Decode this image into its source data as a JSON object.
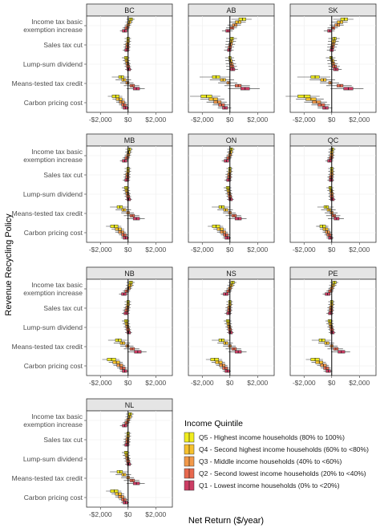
{
  "figure": {
    "ylabel": "Revenue Recycling Policy",
    "xlabel": "Net Return ($/year)",
    "legend_title": "Income Quintile"
  },
  "colors": {
    "Q5": "#f0ec1e",
    "Q4": "#f6c12e",
    "Q3": "#f2994a",
    "Q2": "#e8694f",
    "Q1": "#cc3d64",
    "strip": "#e5e5e5",
    "panel_border": "#333333",
    "grid": "#ebebeb",
    "whisker": "#333333"
  },
  "chart_data": {
    "type": "boxplot",
    "orientation": "horizontal",
    "facets": [
      "BC",
      "AB",
      "SK",
      "MB",
      "ON",
      "QC",
      "NB",
      "NS",
      "PE",
      "NL"
    ],
    "categories": [
      "Income tax basic exemption increase",
      "Sales tax cut",
      "Lump-sum dividend",
      "Means-tested tax credit",
      "Carbon pricing cost"
    ],
    "category_lines": [
      [
        "Income tax basic",
        "exemption increase"
      ],
      [
        "Sales tax cut"
      ],
      [
        "Lump-sum dividend"
      ],
      [
        "Means-tested tax credit"
      ],
      [
        "Carbon pricing cost"
      ]
    ],
    "xticks": [
      -2000,
      0,
      2000
    ],
    "xtick_labels": [
      "-$2,000",
      "$0",
      "$2,000"
    ],
    "xlim": [
      -3000,
      3200
    ],
    "grid": true,
    "legend_position": "bottom-right",
    "series": [
      {
        "key": "Q5",
        "name": "Q5 - Highest income households (80% to 100%)"
      },
      {
        "key": "Q4",
        "name": "Q4 - Second highest income households (60% to <80%)"
      },
      {
        "key": "Q3",
        "name": "Q3 - Middle income households (40% to <60%)"
      },
      {
        "key": "Q2",
        "name": "Q2 - Second lowest income households (20% to <40%)"
      },
      {
        "key": "Q1",
        "name": "Q1 - Lowest income households (0% to <20%)"
      }
    ],
    "note": "Median values per facet, category and quintile (order Q5,Q4,Q3,Q2,Q1)",
    "medians": {
      "BC": [
        [
          200,
          100,
          0,
          -100,
          -250
        ],
        [
          0,
          0,
          -50,
          -50,
          -100
        ],
        [
          -150,
          -100,
          -50,
          0,
          50
        ],
        [
          -500,
          -300,
          -50,
          300,
          600
        ],
        [
          -900,
          -650,
          -450,
          -300,
          -200
        ]
      ],
      "AB": [
        [
          900,
          600,
          350,
          150,
          -150
        ],
        [
          150,
          100,
          50,
          0,
          -50
        ],
        [
          0,
          50,
          100,
          150,
          200
        ],
        [
          -1000,
          -500,
          -100,
          600,
          1100
        ],
        [
          -1700,
          -1200,
          -900,
          -600,
          -350
        ]
      ],
      "SK": [
        [
          900,
          600,
          400,
          100,
          -150
        ],
        [
          200,
          150,
          100,
          50,
          0
        ],
        [
          -50,
          50,
          100,
          200,
          300
        ],
        [
          -1200,
          -600,
          -100,
          600,
          1200
        ],
        [
          -2000,
          -1500,
          -1100,
          -750,
          -450
        ]
      ],
      "MB": [
        [
          100,
          50,
          0,
          -100,
          -250
        ],
        [
          0,
          0,
          -50,
          -50,
          -100
        ],
        [
          -150,
          -100,
          -50,
          0,
          50
        ],
        [
          -600,
          -300,
          0,
          300,
          600
        ],
        [
          -1000,
          -700,
          -500,
          -300,
          -200
        ]
      ],
      "ON": [
        [
          100,
          50,
          0,
          -100,
          -250
        ],
        [
          0,
          0,
          -50,
          -50,
          -100
        ],
        [
          -150,
          -100,
          -50,
          0,
          50
        ],
        [
          -600,
          -300,
          0,
          300,
          600
        ],
        [
          -1000,
          -700,
          -500,
          -300,
          -200
        ]
      ],
      "QC": [
        [
          50,
          0,
          0,
          -50,
          -150
        ],
        [
          0,
          0,
          0,
          -50,
          -50
        ],
        [
          -100,
          -50,
          0,
          0,
          50
        ],
        [
          -400,
          -200,
          0,
          150,
          350
        ],
        [
          -650,
          -450,
          -300,
          -200,
          -100
        ]
      ],
      "NB": [
        [
          200,
          150,
          50,
          -100,
          -300
        ],
        [
          0,
          0,
          -50,
          -100,
          -150
        ],
        [
          -150,
          -100,
          -50,
          0,
          50
        ],
        [
          -700,
          -400,
          -50,
          300,
          700
        ],
        [
          -1200,
          -850,
          -600,
          -400,
          -250
        ]
      ],
      "NS": [
        [
          200,
          100,
          0,
          -100,
          -300
        ],
        [
          0,
          0,
          -50,
          -50,
          -100
        ],
        [
          -150,
          -100,
          -50,
          0,
          50
        ],
        [
          -600,
          -300,
          0,
          300,
          600
        ],
        [
          -1100,
          -800,
          -550,
          -350,
          -200
        ]
      ],
      "PE": [
        [
          200,
          100,
          0,
          -100,
          -300
        ],
        [
          0,
          0,
          -50,
          -50,
          -100
        ],
        [
          -150,
          -100,
          -50,
          0,
          50
        ],
        [
          -700,
          -350,
          0,
          300,
          700
        ],
        [
          -1200,
          -900,
          -600,
          -400,
          -250
        ]
      ],
      "NL": [
        [
          150,
          100,
          0,
          -100,
          -250
        ],
        [
          0,
          0,
          -50,
          -50,
          -100
        ],
        [
          -150,
          -100,
          -50,
          0,
          50
        ],
        [
          -600,
          -300,
          0,
          300,
          600
        ],
        [
          -1000,
          -700,
          -500,
          -300,
          -200
        ]
      ]
    }
  }
}
